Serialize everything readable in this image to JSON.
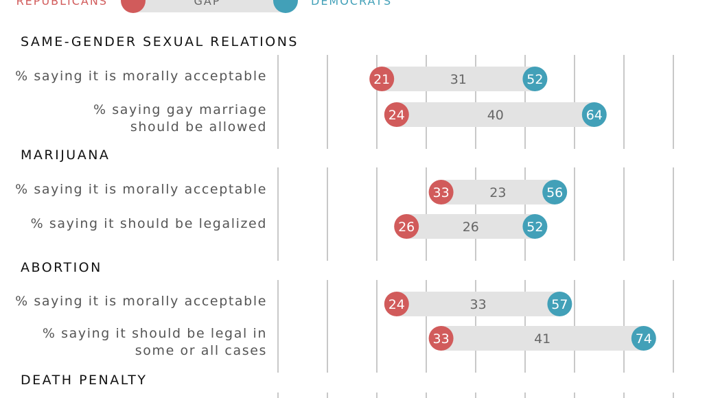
{
  "legend": {
    "republicans": "REPUBLICANS",
    "gap": "GAP",
    "democrats": "DEMOCRATS"
  },
  "colors": {
    "republican": "#d15b5b",
    "democrat": "#42a0b8",
    "gap_bar": "#e3e3e3",
    "gridline": "#c8c8c8"
  },
  "chart_data": {
    "type": "dumbbell",
    "x_range": [
      0,
      80
    ],
    "gridlines": [
      0,
      10,
      20,
      30,
      40,
      50,
      60,
      70,
      80
    ],
    "series": [
      {
        "name": "REPUBLICANS"
      },
      {
        "name": "DEMOCRATS"
      }
    ],
    "categories": [
      {
        "title": "SAME-GENDER SEXUAL RELATIONS",
        "rows": [
          {
            "label": [
              "% saying it is morally acceptable"
            ],
            "republicans": 21,
            "democrats": 52,
            "gap": 31
          },
          {
            "label": [
              "% saying gay marriage",
              "should be allowed"
            ],
            "republicans": 24,
            "democrats": 64,
            "gap": 40
          }
        ]
      },
      {
        "title": "MARIJUANA",
        "rows": [
          {
            "label": [
              "% saying it is morally acceptable"
            ],
            "republicans": 33,
            "democrats": 56,
            "gap": 23
          },
          {
            "label": [
              "% saying it should be legalized"
            ],
            "republicans": 26,
            "democrats": 52,
            "gap": 26
          }
        ]
      },
      {
        "title": "ABORTION",
        "rows": [
          {
            "label": [
              "% saying it is morally acceptable"
            ],
            "republicans": 24,
            "democrats": 57,
            "gap": 33
          },
          {
            "label": [
              "% saying it should be legal in",
              "some or all cases"
            ],
            "republicans": 33,
            "democrats": 74,
            "gap": 41
          }
        ]
      },
      {
        "title": "DEATH PENALTY",
        "rows": []
      }
    ]
  }
}
